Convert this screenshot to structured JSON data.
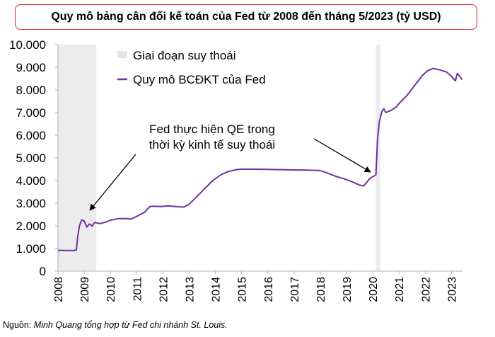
{
  "chart_data": {
    "type": "line",
    "title": "Quy mô bảng cân đối kế toán của Fed từ 2008 đến tháng 5/2023 (tỷ USD)",
    "y_ticks": [
      0,
      1000,
      2000,
      3000,
      4000,
      5000,
      6000,
      7000,
      8000,
      9000,
      10000
    ],
    "y_tick_labels": [
      "0",
      "1.000",
      "2.000",
      "3.000",
      "4.000",
      "5.000",
      "6.000",
      "7.000",
      "8.000",
      "9.000",
      "10.000"
    ],
    "x_tick_labels": [
      "2008",
      "2009",
      "2010",
      "2011",
      "2012",
      "2013",
      "2014",
      "2015",
      "2016",
      "2017",
      "2018",
      "2019",
      "2020",
      "2021",
      "2022",
      "2023"
    ],
    "xlim": [
      2008.0,
      2023.42
    ],
    "ylim": [
      0,
      10000
    ],
    "grid": false,
    "legend_position": "top-left",
    "legend": [
      {
        "label": "Giai đoạn suy thoái",
        "kind": "band"
      },
      {
        "label": "Quy mô BCĐKT của Fed",
        "kind": "line"
      }
    ],
    "recessions": [
      [
        2008.0,
        2009.46
      ],
      [
        2020.12,
        2020.29
      ]
    ],
    "series": [
      {
        "name": "Quy mô BCĐKT của Fed",
        "color": "#7030a0",
        "points": [
          [
            2008.0,
            920
          ],
          [
            2008.6,
            910
          ],
          [
            2008.7,
            940
          ],
          [
            2008.75,
            1500
          ],
          [
            2008.82,
            2000
          ],
          [
            2008.9,
            2260
          ],
          [
            2009.0,
            2220
          ],
          [
            2009.1,
            1950
          ],
          [
            2009.2,
            2080
          ],
          [
            2009.3,
            1990
          ],
          [
            2009.4,
            2150
          ],
          [
            2009.6,
            2100
          ],
          [
            2009.8,
            2160
          ],
          [
            2010.0,
            2250
          ],
          [
            2010.3,
            2320
          ],
          [
            2010.6,
            2320
          ],
          [
            2010.8,
            2300
          ],
          [
            2011.0,
            2420
          ],
          [
            2011.3,
            2600
          ],
          [
            2011.5,
            2850
          ],
          [
            2011.7,
            2870
          ],
          [
            2011.9,
            2850
          ],
          [
            2012.2,
            2880
          ],
          [
            2012.5,
            2850
          ],
          [
            2012.8,
            2830
          ],
          [
            2013.0,
            2950
          ],
          [
            2013.3,
            3300
          ],
          [
            2013.6,
            3650
          ],
          [
            2013.9,
            4000
          ],
          [
            2014.2,
            4250
          ],
          [
            2014.5,
            4400
          ],
          [
            2014.8,
            4480
          ],
          [
            2015.0,
            4500
          ],
          [
            2015.5,
            4500
          ],
          [
            2016.0,
            4490
          ],
          [
            2016.5,
            4480
          ],
          [
            2017.0,
            4470
          ],
          [
            2017.5,
            4460
          ],
          [
            2017.8,
            4450
          ],
          [
            2018.0,
            4440
          ],
          [
            2018.3,
            4320
          ],
          [
            2018.6,
            4180
          ],
          [
            2018.9,
            4080
          ],
          [
            2019.2,
            3950
          ],
          [
            2019.5,
            3800
          ],
          [
            2019.65,
            3760
          ],
          [
            2019.75,
            3900
          ],
          [
            2019.9,
            4100
          ],
          [
            2020.0,
            4170
          ],
          [
            2020.12,
            4250
          ],
          [
            2020.18,
            5800
          ],
          [
            2020.25,
            6600
          ],
          [
            2020.35,
            7050
          ],
          [
            2020.42,
            7170
          ],
          [
            2020.5,
            7000
          ],
          [
            2020.7,
            7100
          ],
          [
            2020.9,
            7250
          ],
          [
            2021.0,
            7400
          ],
          [
            2021.3,
            7750
          ],
          [
            2021.6,
            8200
          ],
          [
            2021.9,
            8650
          ],
          [
            2022.1,
            8850
          ],
          [
            2022.3,
            8950
          ],
          [
            2022.5,
            8900
          ],
          [
            2022.8,
            8800
          ],
          [
            2023.0,
            8600
          ],
          [
            2023.15,
            8400
          ],
          [
            2023.22,
            8730
          ],
          [
            2023.32,
            8600
          ],
          [
            2023.4,
            8450
          ]
        ]
      }
    ],
    "annotations": [
      {
        "lines": [
          "Fed thực hiện QE trong",
          "thời kỳ kinh tế suy thoái"
        ]
      }
    ]
  },
  "source": {
    "prefix": "Nguồn: ",
    "text": "Minh Quang tổng hợp từ Fed chi nhánh St. Louis."
  }
}
